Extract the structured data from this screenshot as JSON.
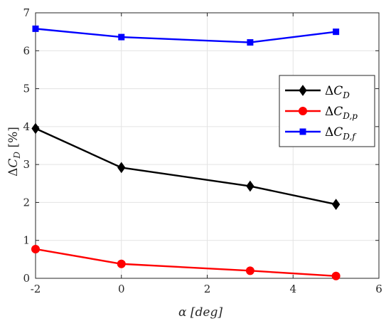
{
  "chart_data": {
    "type": "line",
    "x": [
      -2,
      0,
      3,
      5
    ],
    "series": [
      {
        "name": "ΔC_D",
        "color": "#000000",
        "marker": "diamond",
        "values": [
          3.95,
          2.92,
          2.43,
          1.95
        ]
      },
      {
        "name": "ΔC_{D,p}",
        "color": "#ff0000",
        "marker": "circle",
        "values": [
          0.77,
          0.38,
          0.2,
          0.06
        ]
      },
      {
        "name": "ΔC_{D,f}",
        "color": "#0000ff",
        "marker": "square",
        "values": [
          6.58,
          6.36,
          6.22,
          6.5
        ]
      }
    ],
    "xlim": [
      -2,
      6
    ],
    "ylim": [
      0,
      7
    ],
    "xticks": [
      -2,
      0,
      2,
      4,
      6
    ],
    "yticks": [
      0,
      1,
      2,
      3,
      4,
      5,
      6,
      7
    ],
    "xlabel": "α [deg]",
    "ylabel": "ΔC_D [%]",
    "grid": true,
    "legend_position": "right"
  }
}
